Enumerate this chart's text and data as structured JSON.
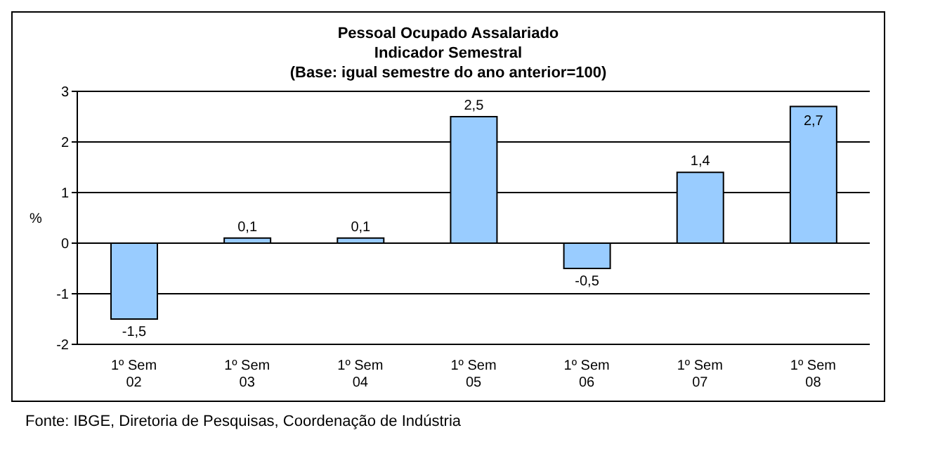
{
  "chart_data": {
    "type": "bar",
    "title": "Pessoal Ocupado Assalariado\nIndicador Semestral",
    "subtitle": "(Base: igual semestre do ano anterior=100)",
    "ylabel": "%",
    "categories": [
      "1º Sem\n02",
      "1º Sem\n03",
      "1º Sem\n04",
      "1º Sem\n05",
      "1º Sem\n06",
      "1º Sem\n07",
      "1º Sem\n08"
    ],
    "values": [
      -1.5,
      0.1,
      0.1,
      2.5,
      -0.5,
      1.4,
      2.7
    ],
    "value_labels": [
      "-1,5",
      "0,1",
      "0,1",
      "2,5",
      "-0,5",
      "1,4",
      "2,7"
    ],
    "color": "#99ccff",
    "ylim": [
      -2,
      3
    ],
    "yticks": [
      -2,
      -1,
      0,
      1,
      2,
      3
    ],
    "grid": "y",
    "legend": false,
    "annotations": [
      "Fonte: IBGE, Diretoria de Pesquisas, Coordenação de Indústria"
    ]
  }
}
